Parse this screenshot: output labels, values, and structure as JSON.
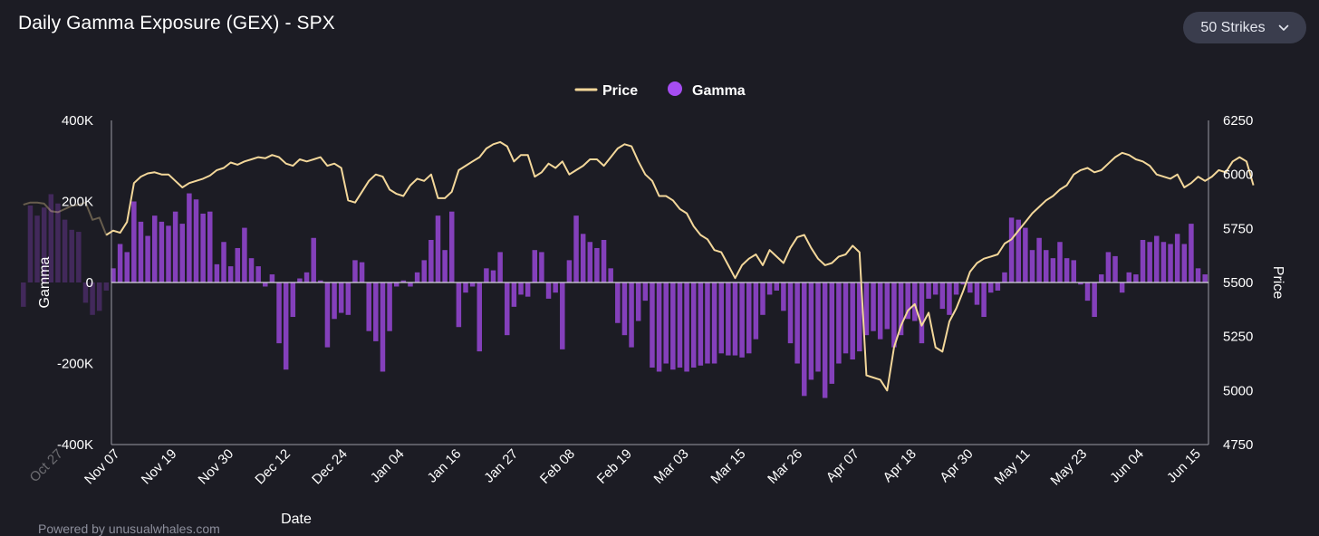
{
  "header": {
    "title": "Daily Gamma Exposure (GEX) - SPX",
    "strikes_label": "50 Strikes",
    "strikes_icon": "chevron-down-icon"
  },
  "footer": {
    "text": "Powered by unusualwhales.com"
  },
  "colors": {
    "background": "#1c1c24",
    "price_line": "#f3d79a",
    "gamma_bar": "#8a42c4",
    "axis": "#9a9aa4",
    "zero_line": "#d6d6dc"
  },
  "chart_data": {
    "type": "bar",
    "title": "Daily Gamma Exposure (GEX) - SPX",
    "xlabel": "Date",
    "ylabel_left": "Gamma",
    "ylabel_right": "Price",
    "legend": {
      "placement": "top-center",
      "entries": [
        "Price",
        "Gamma"
      ]
    },
    "grid": false,
    "ylim_left": [
      -400000,
      400000
    ],
    "ylim_right": [
      4750,
      6250
    ],
    "yticks_left": [
      "400K",
      "200K",
      "0",
      "-200K",
      "-400K"
    ],
    "yticks_right": [
      "6250",
      "6000",
      "5750",
      "5500",
      "5250",
      "5000",
      "4750"
    ],
    "xticks": [
      "Oct 27",
      "Nov 07",
      "Nov 19",
      "Nov 30",
      "Dec 12",
      "Dec 24",
      "Jan 04",
      "Jan 16",
      "Jan 27",
      "Feb 08",
      "Feb 19",
      "Mar 03",
      "Mar 15",
      "Mar 26",
      "Apr 07",
      "Apr 18",
      "Apr 30",
      "May 11",
      "May 23",
      "Jun 04",
      "Jun 15"
    ],
    "series": [
      {
        "name": "Gamma",
        "type": "bar",
        "values": [
          -60000,
          190000,
          165000,
          185000,
          218000,
          195000,
          155000,
          130000,
          125000,
          -50000,
          -80000,
          -70000,
          -20000,
          35000,
          95000,
          75000,
          200000,
          150000,
          115000,
          165000,
          150000,
          140000,
          175000,
          145000,
          220000,
          205000,
          170000,
          175000,
          45000,
          100000,
          40000,
          85000,
          135000,
          60000,
          40000,
          -10000,
          20000,
          -150000,
          -215000,
          -85000,
          10000,
          25000,
          110000,
          5000,
          -160000,
          -90000,
          -75000,
          -80000,
          55000,
          50000,
          -120000,
          -145000,
          -220000,
          -120000,
          -10000,
          5000,
          -10000,
          25000,
          55000,
          105000,
          165000,
          80000,
          175000,
          -110000,
          -25000,
          -10000,
          -170000,
          35000,
          30000,
          75000,
          -130000,
          -60000,
          -30000,
          -35000,
          80000,
          75000,
          -40000,
          -25000,
          -165000,
          55000,
          165000,
          120000,
          100000,
          85000,
          105000,
          35000,
          -100000,
          -130000,
          -160000,
          -95000,
          -45000,
          -210000,
          -220000,
          -200000,
          -215000,
          -210000,
          -220000,
          -210000,
          -205000,
          -200000,
          -200000,
          -175000,
          -180000,
          -180000,
          -185000,
          -175000,
          -140000,
          -80000,
          -30000,
          -20000,
          -70000,
          -150000,
          -200000,
          -280000,
          -240000,
          -220000,
          -285000,
          -250000,
          -200000,
          -175000,
          -190000,
          -170000,
          -130000,
          -120000,
          -140000,
          -115000,
          -160000,
          -130000,
          -90000,
          -95000,
          -150000,
          -40000,
          -30000,
          -65000,
          -80000,
          -30000,
          -5000,
          -25000,
          -55000,
          -85000,
          -25000,
          -20000,
          25000,
          160000,
          155000,
          135000,
          80000,
          110000,
          80000,
          60000,
          100000,
          60000,
          55000,
          -5000,
          -45000,
          -85000,
          20000,
          75000,
          65000,
          -25000,
          25000,
          20000,
          105000,
          100000,
          115000,
          100000,
          95000,
          120000,
          95000,
          145000,
          35000,
          20000
        ]
      },
      {
        "name": "Price",
        "type": "line",
        "values": [
          5860,
          5870,
          5870,
          5865,
          5830,
          5825,
          5840,
          5855,
          5860,
          5870,
          5790,
          5800,
          5720,
          5740,
          5730,
          5780,
          5960,
          5990,
          6005,
          6010,
          6000,
          6000,
          5970,
          5940,
          5960,
          5970,
          5980,
          5995,
          6020,
          6030,
          6055,
          6045,
          6060,
          6070,
          6080,
          6075,
          6090,
          6080,
          6050,
          6040,
          6070,
          6060,
          6070,
          6080,
          6040,
          6050,
          6030,
          5880,
          5870,
          5920,
          5970,
          6000,
          5990,
          5930,
          5910,
          5900,
          5950,
          5980,
          5970,
          6000,
          5890,
          5890,
          5920,
          6020,
          6040,
          6060,
          6080,
          6120,
          6140,
          6150,
          6130,
          6060,
          6090,
          6090,
          5990,
          6010,
          6050,
          6030,
          6060,
          6000,
          6020,
          6040,
          6070,
          6070,
          6040,
          6080,
          6120,
          6140,
          6130,
          6060,
          6000,
          5970,
          5900,
          5900,
          5880,
          5840,
          5820,
          5760,
          5720,
          5700,
          5650,
          5640,
          5580,
          5520,
          5580,
          5610,
          5630,
          5580,
          5650,
          5620,
          5590,
          5660,
          5710,
          5720,
          5660,
          5610,
          5580,
          5590,
          5620,
          5630,
          5670,
          5640,
          5070,
          5060,
          5050,
          5000,
          5200,
          5300,
          5370,
          5400,
          5300,
          5360,
          5200,
          5180,
          5320,
          5380,
          5460,
          5550,
          5590,
          5610,
          5620,
          5630,
          5680,
          5700,
          5740,
          5780,
          5820,
          5850,
          5880,
          5900,
          5930,
          5950,
          6000,
          6020,
          6030,
          6010,
          6020,
          6050,
          6080,
          6100,
          6090,
          6070,
          6060,
          6040,
          6000,
          5990,
          5980,
          6000,
          5940,
          5960,
          5990,
          5970,
          5990,
          6020,
          6010,
          6060,
          6080,
          6060,
          5950
        ]
      }
    ]
  }
}
